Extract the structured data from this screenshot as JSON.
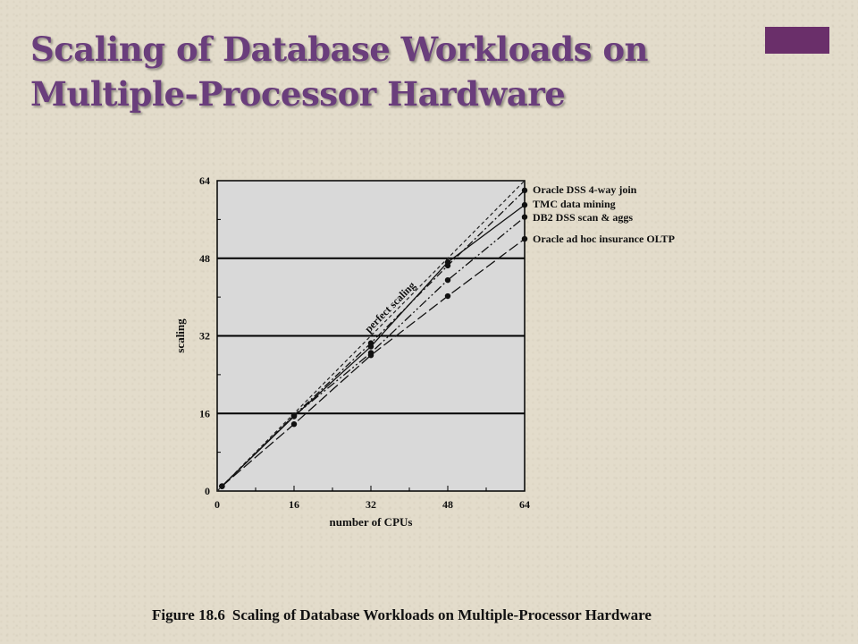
{
  "slide": {
    "title_line1": "Scaling of Database Workloads on",
    "title_line2": "Multiple-Processor Hardware",
    "accent_color": "#6a2f6a",
    "title_color": "#6a3e7c"
  },
  "caption": {
    "figure_number": "Figure 18.6",
    "text": "Scaling of Database Workloads on Multiple-Processor Hardware"
  },
  "chart_data": {
    "type": "line",
    "xlabel": "number of CPUs",
    "ylabel": "scaling",
    "xlim": [
      0,
      64
    ],
    "ylim": [
      0,
      64
    ],
    "xticks": [
      "0",
      "16",
      "32",
      "48",
      "64"
    ],
    "yticks": [
      "0",
      "16",
      "32",
      "48",
      "64"
    ],
    "grid": "horizontal",
    "plot_background": "#d9d9d9",
    "legend_position": "right",
    "reference_line": {
      "label": "perfect scaling",
      "x": [
        0,
        64
      ],
      "y": [
        0,
        64
      ]
    },
    "series": [
      {
        "name": "Oracle DSS 4-way join",
        "x": [
          1,
          16,
          32,
          48,
          64
        ],
        "y": [
          1,
          15.6,
          30.5,
          46.5,
          62
        ],
        "dash": "8 3 2 3"
      },
      {
        "name": "TMC data mining",
        "x": [
          1,
          16,
          32,
          48,
          64
        ],
        "y": [
          1,
          15.4,
          29.8,
          47.2,
          59
        ],
        "dash": ""
      },
      {
        "name": "DB2 DSS scan & aggs",
        "x": [
          1,
          16,
          32,
          48,
          64
        ],
        "y": [
          1,
          15.5,
          28.5,
          43.5,
          56.5
        ],
        "dash": "10 3 2 3 2 3"
      },
      {
        "name": "Oracle ad hoc insurance OLTP",
        "x": [
          1,
          16,
          32,
          48,
          64
        ],
        "y": [
          1,
          13.8,
          28,
          40.2,
          52
        ],
        "dash": "12 4"
      }
    ]
  }
}
